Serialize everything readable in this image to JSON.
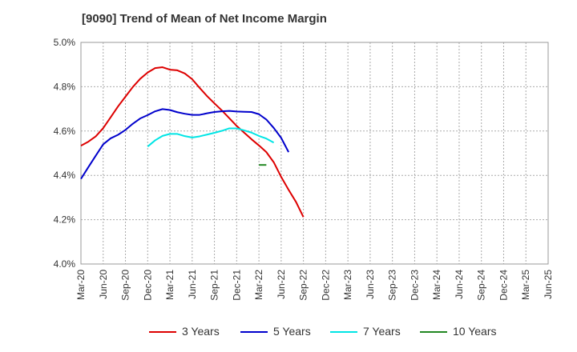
{
  "title": "[9090]  Trend of Mean of Net Income Margin",
  "chart_data": {
    "type": "line",
    "title": "[9090]  Trend of Mean of Net Income Margin",
    "xlabel": "",
    "ylabel": "",
    "x_tick_labels": [
      "Mar-20",
      "Jun-20",
      "Sep-20",
      "Dec-20",
      "Mar-21",
      "Jun-21",
      "Sep-21",
      "Dec-21",
      "Mar-22",
      "Jun-22",
      "Sep-22",
      "Dec-22",
      "Mar-23",
      "Jun-23",
      "Sep-23",
      "Dec-23",
      "Mar-24",
      "Jun-24",
      "Sep-24",
      "Dec-24",
      "Mar-25",
      "Jun-25"
    ],
    "y_tick_labels": [
      "4.0%",
      "4.2%",
      "4.4%",
      "4.6%",
      "4.8%",
      "5.0%"
    ],
    "ylim": [
      4.0,
      5.0
    ],
    "grid": true,
    "legend_position": "bottom",
    "series": [
      {
        "name": "3 Years",
        "color": "#dd0000",
        "start_index": 0,
        "values": [
          4.534,
          4.552,
          4.576,
          4.613,
          4.662,
          4.711,
          4.755,
          4.799,
          4.836,
          4.864,
          4.884,
          4.888,
          4.877,
          4.874,
          4.86,
          4.834,
          4.795,
          4.758,
          4.725,
          4.693,
          4.658,
          4.623,
          4.593,
          4.563,
          4.535,
          4.505,
          4.459,
          4.393,
          4.335,
          4.28,
          4.212
        ]
      },
      {
        "name": "5 Years",
        "color": "#0000cc",
        "start_index": 0,
        "values": [
          4.384,
          4.437,
          4.489,
          4.54,
          4.567,
          4.583,
          4.605,
          4.633,
          4.657,
          4.672,
          4.689,
          4.699,
          4.695,
          4.685,
          4.678,
          4.673,
          4.673,
          4.68,
          4.686,
          4.689,
          4.691,
          4.688,
          4.687,
          4.686,
          4.676,
          4.652,
          4.614,
          4.569,
          4.505
        ]
      },
      {
        "name": "7 Years",
        "color": "#00e5e5",
        "start_index": 9,
        "values": [
          4.53,
          4.558,
          4.578,
          4.587,
          4.587,
          4.577,
          4.571,
          4.576,
          4.584,
          4.592,
          4.601,
          4.612,
          4.612,
          4.603,
          4.593,
          4.578,
          4.566,
          4.548
        ]
      },
      {
        "name": "10 Years",
        "color": "#228822",
        "start_index": 24,
        "values": [
          4.447,
          4.447
        ]
      }
    ]
  }
}
